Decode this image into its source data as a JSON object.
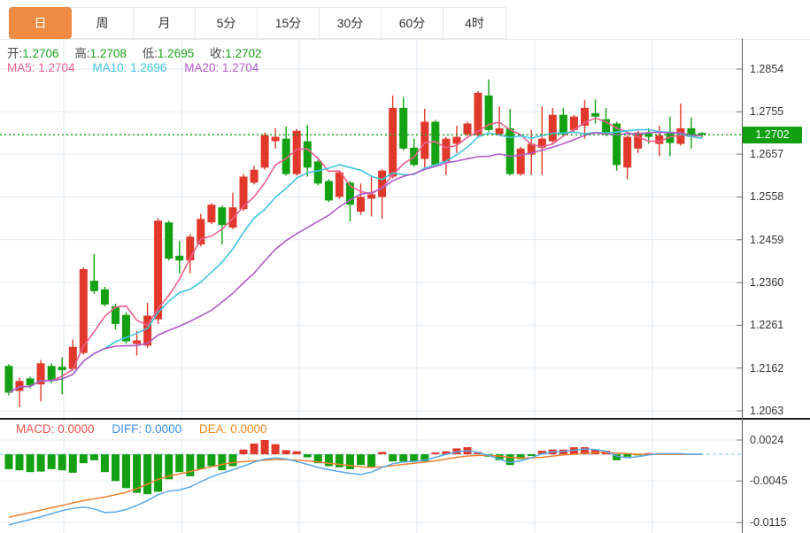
{
  "tabs": {
    "items": [
      {
        "label": "日",
        "active": true
      },
      {
        "label": "周",
        "active": false
      },
      {
        "label": "月",
        "active": false
      },
      {
        "label": "5分",
        "active": false
      },
      {
        "label": "15分",
        "active": false
      },
      {
        "label": "30分",
        "active": false
      },
      {
        "label": "60分",
        "active": false
      },
      {
        "label": "4时",
        "active": false
      }
    ]
  },
  "legend": {
    "open_label": "开:",
    "open_value": "1.2706",
    "high_label": "高:",
    "high_value": "1.2708",
    "low_label": "低:",
    "low_value": "1.2695",
    "close_label": "收:",
    "close_value": "1.2702",
    "ma5_label": "MA5:",
    "ma5_value": "1.2704",
    "ma10_label": "MA10:",
    "ma10_value": "1.2696",
    "ma20_label": "MA20:",
    "ma20_value": "1.2704"
  },
  "macd_legend": {
    "macd_label": "MACD:",
    "macd_value": "0.0000",
    "diff_label": "DIFF:",
    "diff_value": "0.0000",
    "dea_label": "DEA:",
    "dea_value": "0.0000"
  },
  "axis": {
    "price_labels": [
      "1.2854",
      "1.2755",
      "1.2657",
      "1.2558",
      "1.2459",
      "1.2360",
      "1.2261",
      "1.2162",
      "1.2063"
    ],
    "macd_labels": [
      "0.0024",
      "-0.0045",
      "-0.0115"
    ],
    "current_price_label": "1.2702"
  },
  "colors": {
    "tab_active_bg": "#ef8b43",
    "up_candle": "#e0392b",
    "down_candle": "#13a113",
    "value_green": "#1ca21c",
    "ma5": "#ee6090",
    "ma10": "#40c4e0",
    "ma20": "#b05cc8",
    "diff_line": "#58a8e8",
    "dea_line": "#f08030",
    "macd_text": "#e8554a",
    "diff_text": "#3b8de8",
    "dea_text": "#f08c1e",
    "price_line": "#2ca62c",
    "badge_bg": "#12a012",
    "grid_h": "#e4ebf2",
    "grid_v": "#dfe8f0",
    "zero_dash": "#9edcf0",
    "axis_text": "#333333"
  },
  "chart_data": {
    "type": "candlestick_with_macd",
    "title": "",
    "x_labels": [],
    "price_grid": [
      1.2854,
      1.2755,
      1.2657,
      1.2558,
      1.2459,
      1.236,
      1.2261,
      1.2162,
      1.2063
    ],
    "current_price": 1.2702,
    "moving_averages": [
      {
        "name": "MA5",
        "period": 5,
        "color": "ma5"
      },
      {
        "name": "MA10",
        "period": 10,
        "color": "ma10"
      },
      {
        "name": "MA20",
        "period": 20,
        "color": "ma20"
      }
    ],
    "candles": [
      [
        1.2167,
        1.2171,
        1.2099,
        1.2105
      ],
      [
        1.2109,
        1.214,
        1.2071,
        1.2132
      ],
      [
        1.2138,
        1.2142,
        1.2115,
        1.2122
      ],
      [
        1.2124,
        1.2181,
        1.2085,
        1.2173
      ],
      [
        1.2167,
        1.2173,
        1.2126,
        1.2132
      ],
      [
        1.2165,
        1.2187,
        1.2101,
        1.2157
      ],
      [
        1.216,
        1.2228,
        1.2156,
        1.2211
      ],
      [
        1.2197,
        1.2395,
        1.2193,
        1.2391
      ],
      [
        1.2364,
        1.2426,
        1.2334,
        1.234
      ],
      [
        1.2344,
        1.235,
        1.2305,
        1.2309
      ],
      [
        1.2305,
        1.2311,
        1.2252,
        1.2264
      ],
      [
        1.2285,
        1.2291,
        1.2218,
        1.2224
      ],
      [
        1.2218,
        1.2248,
        1.2191,
        1.2226
      ],
      [
        1.2214,
        1.2313,
        1.2209,
        1.2283
      ],
      [
        1.2275,
        1.2509,
        1.2264,
        1.2503
      ],
      [
        1.2499,
        1.2503,
        1.2411,
        1.2415
      ],
      [
        1.2422,
        1.2456,
        1.2381,
        1.2411
      ],
      [
        1.2411,
        1.2472,
        1.2381,
        1.2466
      ],
      [
        1.2448,
        1.2519,
        1.2444,
        1.2507
      ],
      [
        1.2499,
        1.2544,
        1.2495,
        1.254
      ],
      [
        1.2534,
        1.2538,
        1.2448,
        1.2493
      ],
      [
        1.2487,
        1.2568,
        1.2483,
        1.2534
      ],
      [
        1.253,
        1.2611,
        1.2526,
        1.2605
      ],
      [
        1.2591,
        1.263,
        1.2587,
        1.2621
      ],
      [
        1.2626,
        1.2707,
        1.2621,
        1.2701
      ],
      [
        1.2687,
        1.2717,
        1.267,
        1.2697
      ],
      [
        1.2693,
        1.2721,
        1.2607,
        1.2611
      ],
      [
        1.2611,
        1.2715,
        1.2607,
        1.2711
      ],
      [
        1.2687,
        1.2725,
        1.2605,
        1.2626
      ],
      [
        1.264,
        1.2644,
        1.2585,
        1.2589
      ],
      [
        1.2595,
        1.2599,
        1.2546,
        1.255
      ],
      [
        1.2558,
        1.2619,
        1.2554,
        1.2615
      ],
      [
        1.2591,
        1.2595,
        1.2501,
        1.254
      ],
      [
        1.2524,
        1.2589,
        1.2517,
        1.2558
      ],
      [
        1.2554,
        1.2605,
        1.2513,
        1.2564
      ],
      [
        1.2558,
        1.2623,
        1.2507,
        1.2619
      ],
      [
        1.2605,
        1.2793,
        1.2601,
        1.2764
      ],
      [
        1.2764,
        1.2789,
        1.2666,
        1.267
      ],
      [
        1.2672,
        1.2693,
        1.2628,
        1.2632
      ],
      [
        1.2646,
        1.2762,
        1.2626,
        1.2732
      ],
      [
        1.2732,
        1.2736,
        1.2628,
        1.2632
      ],
      [
        1.264,
        1.2697,
        1.2609,
        1.2693
      ],
      [
        1.2681,
        1.2723,
        1.266,
        1.2697
      ],
      [
        1.2703,
        1.2732,
        1.2699,
        1.2728
      ],
      [
        1.2701,
        1.2803,
        1.2697,
        1.2799
      ],
      [
        1.2793,
        1.283,
        1.2709,
        1.2713
      ],
      [
        1.2703,
        1.2768,
        1.2699,
        1.2717
      ],
      [
        1.2717,
        1.2762,
        1.2607,
        1.2611
      ],
      [
        1.2611,
        1.2674,
        1.2607,
        1.267
      ],
      [
        1.2656,
        1.2713,
        1.2609,
        1.2681
      ],
      [
        1.2672,
        1.2768,
        1.2609,
        1.2693
      ],
      [
        1.2687,
        1.2764,
        1.2683,
        1.2748
      ],
      [
        1.2748,
        1.2764,
        1.2699,
        1.2703
      ],
      [
        1.2713,
        1.2748,
        1.2709,
        1.2744
      ],
      [
        1.2723,
        1.2782,
        1.2693,
        1.2764
      ],
      [
        1.2752,
        1.2784,
        1.2728,
        1.2744
      ],
      [
        1.2738,
        1.2764,
        1.2699,
        1.2703
      ],
      [
        1.2728,
        1.2732,
        1.2619,
        1.2632
      ],
      [
        1.2626,
        1.2701,
        1.2599,
        1.2697
      ],
      [
        1.267,
        1.2711,
        1.266,
        1.2707
      ],
      [
        1.2705,
        1.2717,
        1.2681,
        1.2697
      ],
      [
        1.2681,
        1.2723,
        1.2652,
        1.2701
      ],
      [
        1.2709,
        1.2744,
        1.2652,
        1.2683
      ],
      [
        1.2681,
        1.2774,
        1.2677,
        1.2717
      ],
      [
        1.2717,
        1.2742,
        1.267,
        1.2697
      ],
      [
        1.2706,
        1.2708,
        1.2695,
        1.2702
      ]
    ],
    "macd": {
      "grid": [
        0.0024,
        -0.0045,
        -0.0115
      ],
      "zero": 0,
      "hist": [
        -0.0025,
        -0.0027,
        -0.003,
        -0.0029,
        -0.0025,
        -0.0027,
        -0.0031,
        -0.0015,
        -0.001,
        -0.003,
        -0.0045,
        -0.0057,
        -0.0065,
        -0.0067,
        -0.0063,
        -0.0042,
        -0.003,
        -0.0037,
        -0.0025,
        -0.002,
        -0.0027,
        -0.002,
        0.0008,
        0.0018,
        0.0024,
        0.0017,
        0.0007,
        0.0005,
        -0.0005,
        -0.0015,
        -0.002,
        -0.0022,
        -0.0025,
        -0.0018,
        -0.0023,
        0.0004,
        -0.0012,
        -0.0012,
        -0.0012,
        -0.0012,
        0.0003,
        0.0005,
        0.001,
        0.0012,
        0.0004,
        -0.0004,
        -0.001,
        -0.0018,
        -0.0008,
        -0.0003,
        0.0006,
        0.0008,
        0.0008,
        0.0012,
        0.0012,
        0.0008,
        0.0006,
        -0.001,
        -0.0004,
        -0.0002,
        0.0002,
        0.0002,
        0.0001,
        0.0001,
        0.0,
        0.0
      ],
      "diff": [
        -0.0119,
        -0.0114,
        -0.011,
        -0.0105,
        -0.01,
        -0.0095,
        -0.0091,
        -0.0089,
        -0.0092,
        -0.0098,
        -0.0097,
        -0.0093,
        -0.0086,
        -0.0078,
        -0.0068,
        -0.0062,
        -0.006,
        -0.0055,
        -0.0046,
        -0.0038,
        -0.0032,
        -0.0026,
        -0.002,
        -0.0013,
        -0.0008,
        -0.0006,
        -0.0008,
        -0.0012,
        -0.0017,
        -0.0022,
        -0.0026,
        -0.0029,
        -0.0032,
        -0.0034,
        -0.003,
        -0.0022,
        -0.0016,
        -0.0013,
        -0.0012,
        -0.001,
        -0.0005,
        0.0,
        0.0004,
        0.0006,
        0.0003,
        -0.0002,
        -0.0008,
        -0.0014,
        -0.0011,
        -0.0006,
        0.0001,
        0.0004,
        0.0005,
        0.0007,
        0.0009,
        0.0008,
        0.0005,
        -0.0003,
        -0.0006,
        -0.0004,
        -0.0001,
        0.0001,
        0.0001,
        0.0001,
        0.0,
        0.0
      ],
      "dea": [
        -0.0106,
        -0.0102,
        -0.0098,
        -0.0094,
        -0.009,
        -0.0086,
        -0.0082,
        -0.0078,
        -0.0075,
        -0.0072,
        -0.0068,
        -0.0064,
        -0.0058,
        -0.005,
        -0.0042,
        -0.0037,
        -0.0033,
        -0.0029,
        -0.0025,
        -0.0021,
        -0.0017,
        -0.0014,
        -0.0012,
        -0.0011,
        -0.001,
        -0.0009,
        -0.0009,
        -0.001,
        -0.0011,
        -0.0013,
        -0.0015,
        -0.0017,
        -0.0019,
        -0.0021,
        -0.0022,
        -0.0021,
        -0.0019,
        -0.0017,
        -0.0015,
        -0.0013,
        -0.0011,
        -0.0008,
        -0.0005,
        -0.0003,
        -0.0002,
        -0.0002,
        -0.0003,
        -0.0005,
        -0.0006,
        -0.0006,
        -0.0005,
        -0.0003,
        -0.0001,
        0.0,
        0.0002,
        0.0003,
        0.0003,
        0.0002,
        0.0001,
        0.0,
        0.0,
        0.0,
        0.0,
        0.0,
        0.0,
        0.0
      ]
    }
  }
}
